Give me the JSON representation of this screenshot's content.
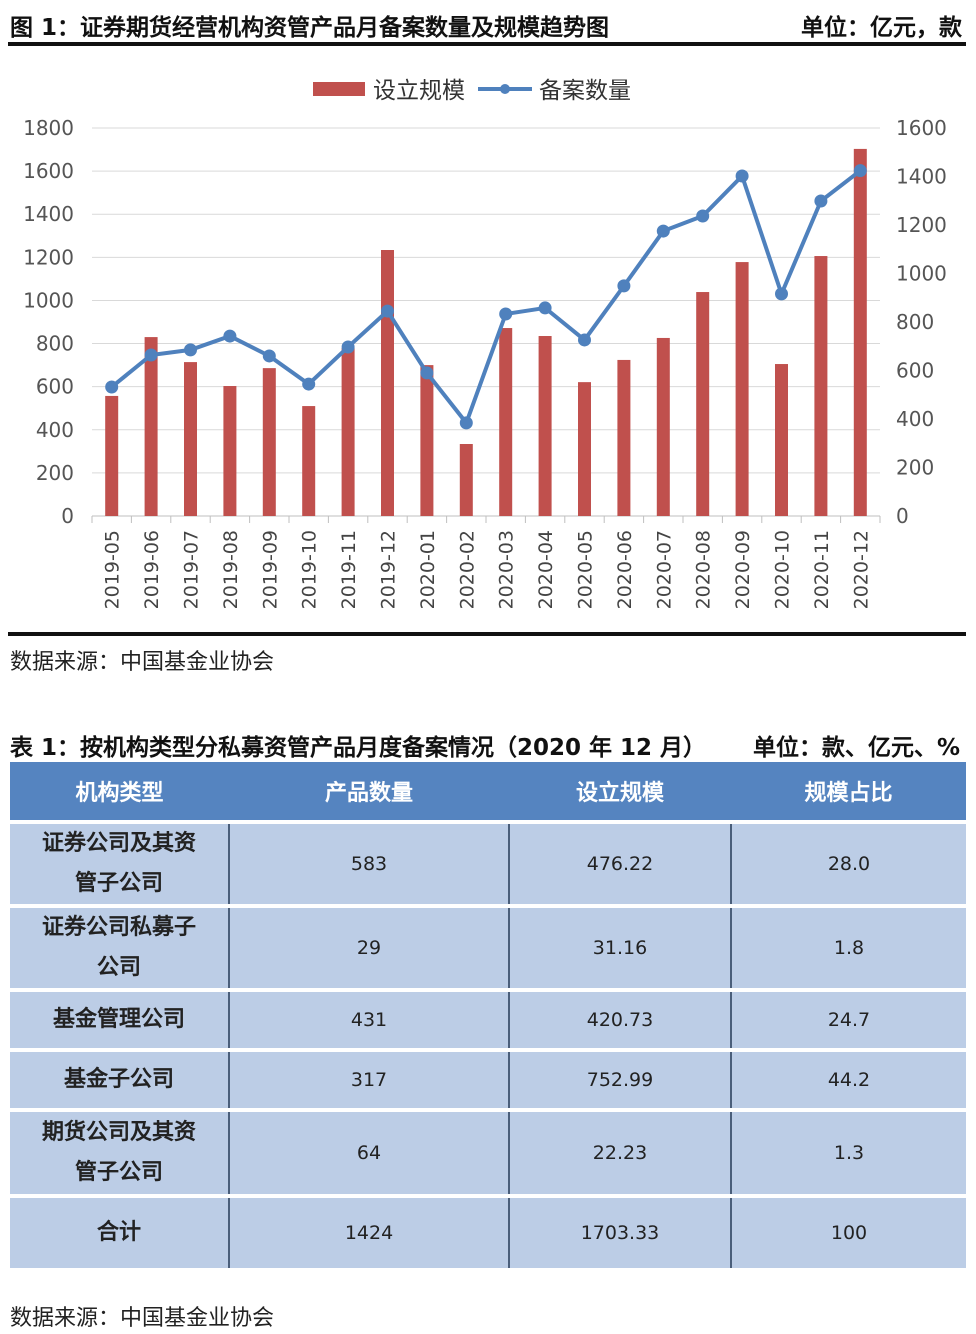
{
  "figure": {
    "title": "图 1：证券期货经营机构资管产品月备案数量及规模趋势图",
    "unit": "单位：亿元，款",
    "source": "数据来源：中国基金业协会"
  },
  "chart_data": {
    "type": "bar+line",
    "categories": [
      "2019-05",
      "2019-06",
      "2019-07",
      "2019-08",
      "2019-09",
      "2019-10",
      "2019-11",
      "2019-12",
      "2020-01",
      "2020-02",
      "2020-03",
      "2020-04",
      "2020-05",
      "2020-06",
      "2020-07",
      "2020-08",
      "2020-09",
      "2020-10",
      "2020-11",
      "2020-12"
    ],
    "series": [
      {
        "name": "设立规模",
        "type": "bar",
        "axis": "left",
        "color": "#c0504d",
        "values": [
          557,
          830,
          714,
          603,
          686,
          510,
          779,
          1234,
          700,
          334,
          872,
          835,
          621,
          724,
          826,
          1039,
          1178,
          705,
          1206,
          1703
        ]
      },
      {
        "name": "备案数量",
        "type": "line",
        "axis": "right",
        "color": "#4f81bd",
        "values": [
          532,
          664,
          685,
          742,
          660,
          544,
          697,
          845,
          590,
          384,
          833,
          858,
          726,
          949,
          1175,
          1237,
          1402,
          916,
          1299,
          1424
        ]
      }
    ],
    "ylim_left": [
      0,
      1800
    ],
    "yticks_left": [
      "0",
      "200",
      "400",
      "600",
      "800",
      "1000",
      "1200",
      "1400",
      "1600",
      "1800"
    ],
    "ylim_right": [
      0,
      1600
    ],
    "yticks_right": [
      "0",
      "200",
      "400",
      "600",
      "800",
      "1000",
      "1200",
      "1400",
      "1600"
    ],
    "grid": true,
    "legend": "top"
  },
  "table": {
    "title": "表 1：按机构类型分私募资管产品月度备案情况（2020 年 12 月）",
    "unit": "单位：款、亿元、%",
    "headers": [
      "机构类型",
      "产品数量",
      "设立规模",
      "规模占比"
    ],
    "rows": [
      [
        "证券公司及其资管子公司",
        "583",
        "476.22",
        "28.0"
      ],
      [
        "证券公司私募子公司",
        "29",
        "31.16",
        "1.8"
      ],
      [
        "基金管理公司",
        "431",
        "420.73",
        "24.7"
      ],
      [
        "基金子公司",
        "317",
        "752.99",
        "44.2"
      ],
      [
        "期货公司及其资管子公司",
        "64",
        "22.23",
        "1.3"
      ],
      [
        "合计",
        "1424",
        "1703.33",
        "100"
      ]
    ],
    "source": "数据来源：中国基金业协会"
  }
}
